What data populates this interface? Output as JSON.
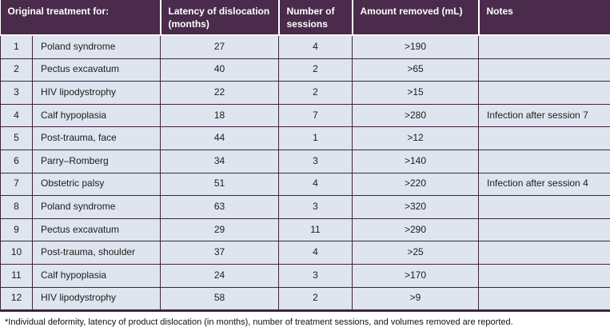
{
  "colors": {
    "header_bg": "#4a2b4c",
    "row_bg": "#dee5ee",
    "border": "#402442",
    "header_text": "#ffffff",
    "body_text": "#1c1c1c"
  },
  "table": {
    "headers": {
      "treatment": "Original treatment for:",
      "latency": "Latency of dislocation (months)",
      "sessions": "Number of sessions",
      "amount": "Amount removed (mL)",
      "notes": "Notes"
    },
    "rows": [
      {
        "num": "1",
        "treatment": "Poland syndrome",
        "latency": "27",
        "sessions": "4",
        "amount": ">190",
        "notes": ""
      },
      {
        "num": "2",
        "treatment": "Pectus excavatum",
        "latency": "40",
        "sessions": "2",
        "amount": ">65",
        "notes": ""
      },
      {
        "num": "3",
        "treatment": "HIV lipodystrophy",
        "latency": "22",
        "sessions": "2",
        "amount": ">15",
        "notes": ""
      },
      {
        "num": "4",
        "treatment": "Calf hypoplasia",
        "latency": "18",
        "sessions": "7",
        "amount": ">280",
        "notes": "Infection after session 7"
      },
      {
        "num": "5",
        "treatment": "Post-trauma, face",
        "latency": "44",
        "sessions": "1",
        "amount": ">12",
        "notes": ""
      },
      {
        "num": "6",
        "treatment": "Parry–Romberg",
        "latency": "34",
        "sessions": "3",
        "amount": ">140",
        "notes": ""
      },
      {
        "num": "7",
        "treatment": "Obstetric palsy",
        "latency": "51",
        "sessions": "4",
        "amount": ">220",
        "notes": "Infection after session 4"
      },
      {
        "num": "8",
        "treatment": "Poland syndrome",
        "latency": "63",
        "sessions": "3",
        "amount": ">320",
        "notes": ""
      },
      {
        "num": "9",
        "treatment": "Pectus excavatum",
        "latency": "29",
        "sessions": "11",
        "amount": ">290",
        "notes": ""
      },
      {
        "num": "10",
        "treatment": "Post-trauma, shoulder",
        "latency": "37",
        "sessions": "4",
        "amount": ">25",
        "notes": ""
      },
      {
        "num": "11",
        "treatment": "Calf hypoplasia",
        "latency": "24",
        "sessions": "3",
        "amount": ">170",
        "notes": ""
      },
      {
        "num": "12",
        "treatment": "HIV lipodystrophy",
        "latency": "58",
        "sessions": "2",
        "amount": ">9",
        "notes": ""
      }
    ],
    "footnote": "*Individual deformity, latency of product dislocation (in months), number of treatment sessions, and volumes removed are reported."
  },
  "chart_data": {
    "type": "table",
    "title": "",
    "columns": [
      "#",
      "Original treatment for:",
      "Latency of dislocation (months)",
      "Number of sessions",
      "Amount removed (mL)",
      "Notes"
    ],
    "rows": [
      [
        "1",
        "Poland syndrome",
        27,
        4,
        ">190",
        ""
      ],
      [
        "2",
        "Pectus excavatum",
        40,
        2,
        ">65",
        ""
      ],
      [
        "3",
        "HIV lipodystrophy",
        22,
        2,
        ">15",
        ""
      ],
      [
        "4",
        "Calf hypoplasia",
        18,
        7,
        ">280",
        "Infection after session 7"
      ],
      [
        "5",
        "Post-trauma, face",
        44,
        1,
        ">12",
        ""
      ],
      [
        "6",
        "Parry–Romberg",
        34,
        3,
        ">140",
        ""
      ],
      [
        "7",
        "Obstetric palsy",
        51,
        4,
        ">220",
        "Infection after session 4"
      ],
      [
        "8",
        "Poland syndrome",
        63,
        3,
        ">320",
        ""
      ],
      [
        "9",
        "Pectus excavatum",
        29,
        11,
        ">290",
        ""
      ],
      [
        "10",
        "Post-trauma, shoulder",
        37,
        4,
        ">25",
        ""
      ],
      [
        "11",
        "Calf hypoplasia",
        24,
        3,
        ">170",
        ""
      ],
      [
        "12",
        "HIV lipodystrophy",
        58,
        2,
        ">9",
        ""
      ]
    ],
    "footnote": "*Individual deformity, latency of product dislocation (in months), number of treatment sessions, and volumes removed are reported."
  }
}
